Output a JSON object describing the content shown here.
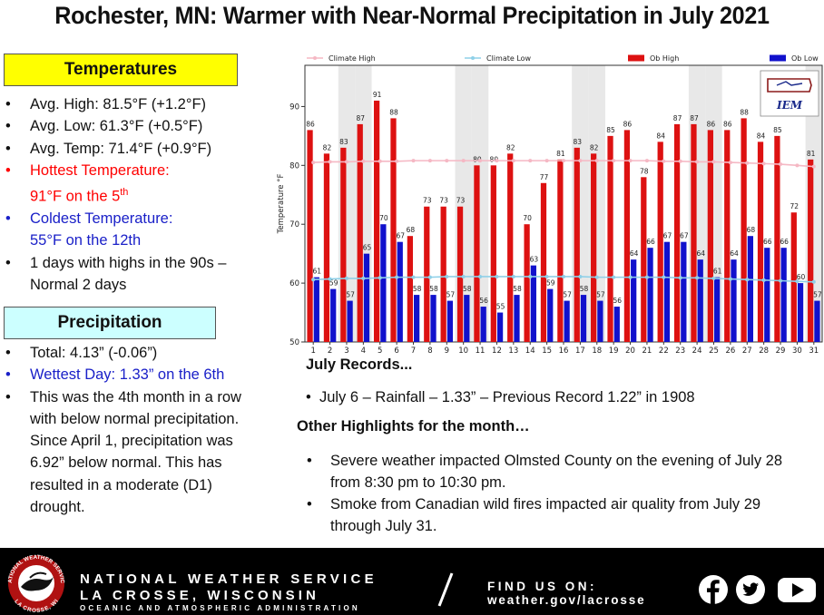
{
  "title": "Rochester, MN:  Warmer with Near-Normal Precipitation in July 2021",
  "temperatures": {
    "header": "Temperatures",
    "items": [
      "Avg. High:  81.5°F (+1.2°F)",
      "Avg. Low:  61.3°F (+0.5°F)",
      "Avg. Temp:  71.4°F (+0.9°F)"
    ],
    "hottest_label": "Hottest Temperature:",
    "hottest_value": "91°F on the 5",
    "hottest_sup": "th",
    "coldest_label": "Coldest Temperature:",
    "coldest_value": "55°F on the 12th",
    "nineties": "1 days with highs in the 90s – Normal 2 days"
  },
  "precipitation": {
    "header": "Precipitation",
    "total": "Total:  4.13” (-0.06”)",
    "wettest": "Wettest Day: 1.33” on the 6th",
    "description": "This was the 4th month in a row with below normal precipitation. Since April 1, precipitation was 6.92” below normal. This has resulted in a moderate (D1) drought."
  },
  "records": {
    "header": "July Records...",
    "item": "July 6 – Rainfall – 1.33” – Previous Record 1.22” in 1908"
  },
  "highlights": {
    "header": "Other Highlights for the month…",
    "items": [
      "Severe weather impacted Olmsted County on the evening of July 28 from 8:30 pm to 10:30 pm.",
      "Smoke from Canadian wild fires impacted air quality from July 29 through July 31."
    ]
  },
  "footer": {
    "line1": "NATIONAL WEATHER SERVICE",
    "line2": "LA CROSSE, WISCONSIN",
    "line3": "OCEANIC AND ATMOSPHERIC ADMINISTRATION",
    "find_us": "FIND US ON:",
    "url": "weather.gov/lacrosse",
    "logo_text_top": "NATIONAL WEATHER SERVICE",
    "logo_text_bottom": "LA CROSSE, WI",
    "icons": [
      "facebook-icon",
      "twitter-icon",
      "youtube-icon"
    ]
  },
  "colors": {
    "ob_high": "#dd1111",
    "ob_low": "#1111cc",
    "climate_high": "#f5b8c4",
    "climate_low": "#8fd0e8",
    "weekend_band": "#e8e8e8",
    "temp_header_bg": "#ffff00",
    "precip_header_bg": "#ccffff"
  },
  "chart_data": {
    "type": "bar",
    "title": "",
    "xlabel": "",
    "ylabel": "Temperature °F",
    "ylim": [
      50,
      97
    ],
    "yticks": [
      50,
      60,
      70,
      80,
      90
    ],
    "categories": [
      "1",
      "2",
      "3",
      "4",
      "5",
      "6",
      "7",
      "8",
      "9",
      "10",
      "11",
      "12",
      "13",
      "14",
      "15",
      "16",
      "17",
      "18",
      "19",
      "20",
      "21",
      "22",
      "23",
      "24",
      "25",
      "26",
      "27",
      "28",
      "29",
      "30",
      "31"
    ],
    "series": [
      {
        "name": "Climate High",
        "kind": "line",
        "values": [
          80.5,
          80.6,
          80.6,
          80.7,
          80.7,
          80.7,
          80.8,
          80.8,
          80.8,
          80.8,
          80.8,
          80.8,
          80.8,
          80.8,
          80.8,
          80.8,
          80.8,
          80.8,
          80.8,
          80.8,
          80.8,
          80.7,
          80.7,
          80.6,
          80.6,
          80.5,
          80.4,
          80.3,
          80.2,
          80.0,
          79.8
        ]
      },
      {
        "name": "Climate Low",
        "kind": "line",
        "values": [
          60.6,
          60.7,
          60.8,
          60.8,
          60.9,
          61.0,
          61.0,
          61.0,
          61.1,
          61.1,
          61.1,
          61.1,
          61.1,
          61.1,
          61.1,
          61.1,
          61.1,
          61.0,
          61.0,
          61.0,
          61.0,
          61.0,
          60.9,
          60.9,
          60.8,
          60.7,
          60.6,
          60.5,
          60.4,
          60.3,
          60.2
        ]
      },
      {
        "name": "Ob High",
        "kind": "bar",
        "values": [
          86,
          82,
          83,
          87,
          91,
          88,
          68,
          73,
          73,
          73,
          80,
          80,
          82,
          70,
          77,
          81,
          83,
          82,
          85,
          86,
          78,
          84,
          87,
          87,
          86,
          86,
          88,
          84,
          85,
          72,
          81
        ]
      },
      {
        "name": "Ob Low",
        "kind": "bar",
        "values": [
          61,
          59,
          57,
          65,
          70,
          67,
          58,
          58,
          57,
          58,
          56,
          55,
          58,
          63,
          59,
          57,
          58,
          57,
          56,
          64,
          66,
          67,
          67,
          64,
          61,
          64,
          68,
          66,
          66,
          60,
          57
        ]
      }
    ],
    "weekend_days": [
      3,
      4,
      10,
      11,
      17,
      18,
      24,
      25,
      31
    ],
    "legend": [
      "Climate High",
      "Climate Low",
      "Ob High",
      "Ob Low"
    ],
    "legend_position": "top",
    "watermark": "IEM",
    "grid": false
  }
}
